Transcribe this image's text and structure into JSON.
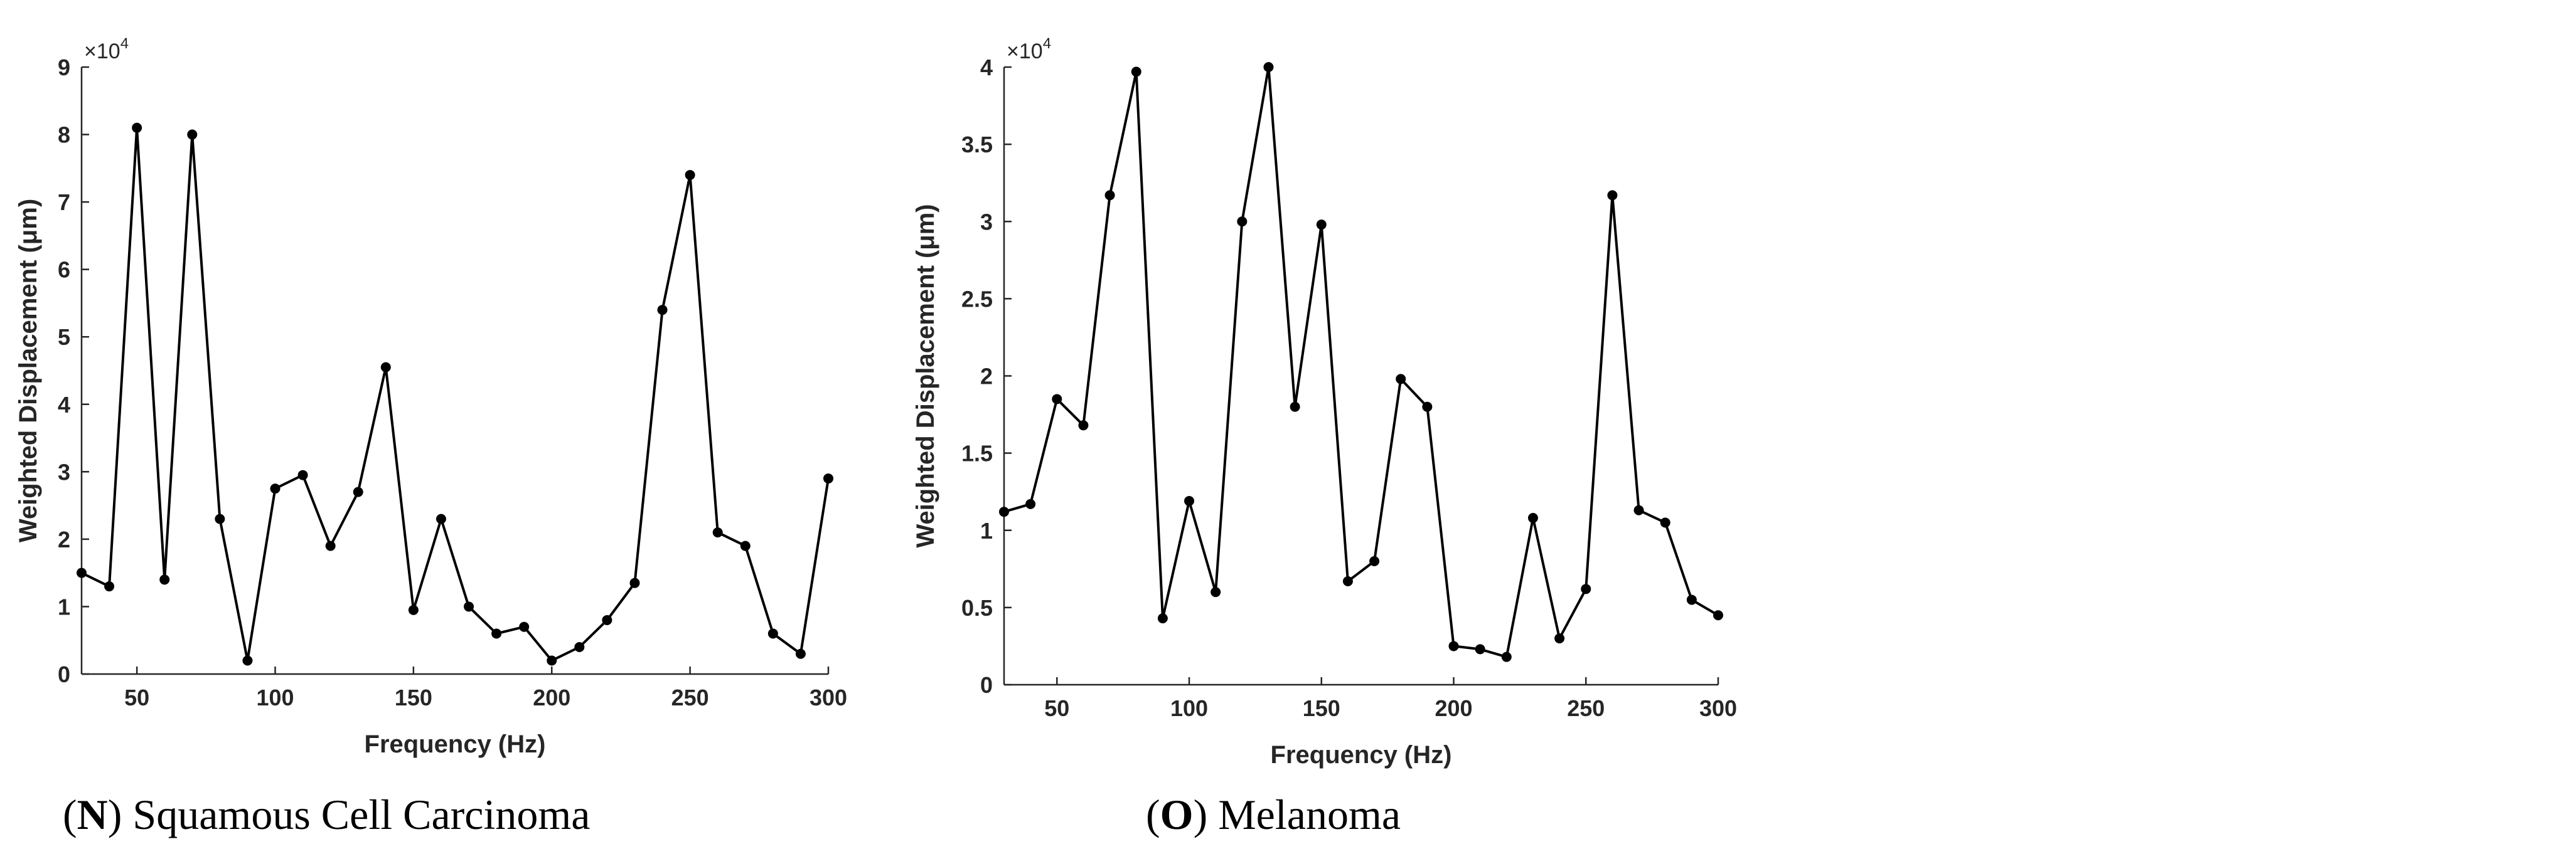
{
  "figure": {
    "panels": [
      {
        "caption": {
          "open": "(",
          "letter": "N",
          "close": ")",
          "text": " Squamous Cell Carcinoma"
        },
        "axis_color": "#262626",
        "line_color": "#000000"
      },
      {
        "caption": {
          "open": "(",
          "letter": "O",
          "close": ")",
          "text": " Melanoma"
        },
        "axis_color": "#262626",
        "line_color": "#000000"
      }
    ]
  },
  "chart_data": [
    {
      "type": "line",
      "title": "",
      "xlabel": "Frequency (Hz)",
      "ylabel": "Weighted Displacement (μm)",
      "multiplier": {
        "base": "×10",
        "exp": "4"
      },
      "xlim": [
        30,
        300
      ],
      "ylim": [
        0,
        9
      ],
      "xticks": [
        50,
        100,
        150,
        200,
        250,
        300
      ],
      "xtick_labels": [
        "50",
        "100",
        "150",
        "200",
        "250",
        "300"
      ],
      "yticks": [
        0,
        1,
        2,
        3,
        4,
        5,
        6,
        7,
        8,
        9
      ],
      "ytick_labels": [
        "0",
        "1",
        "2",
        "3",
        "4",
        "5",
        "6",
        "7",
        "8",
        "9"
      ],
      "series": [
        {
          "name": "Squamous Cell Carcinoma",
          "x": [
            30,
            40,
            50,
            60,
            70,
            80,
            90,
            100,
            110,
            120,
            130,
            140,
            150,
            160,
            170,
            180,
            190,
            200,
            210,
            220,
            230,
            240,
            250,
            260,
            270,
            280,
            290,
            300
          ],
          "y": [
            1.5,
            1.3,
            8.1,
            1.4,
            8.0,
            2.3,
            0.2,
            2.75,
            2.95,
            1.9,
            2.7,
            4.55,
            0.95,
            2.3,
            1.0,
            0.6,
            0.7,
            0.2,
            0.4,
            0.8,
            1.35,
            5.4,
            7.4,
            2.1,
            1.9,
            0.6,
            0.3,
            2.9
          ]
        }
      ]
    },
    {
      "type": "line",
      "title": "",
      "xlabel": "Frequency (Hz)",
      "ylabel": "Weighted Displacement (μm)",
      "multiplier": {
        "base": "×10",
        "exp": "4"
      },
      "xlim": [
        30,
        300
      ],
      "ylim": [
        0,
        4
      ],
      "xticks": [
        50,
        100,
        150,
        200,
        250,
        300
      ],
      "xtick_labels": [
        "50",
        "100",
        "150",
        "200",
        "250",
        "300"
      ],
      "yticks": [
        0,
        0.5,
        1,
        1.5,
        2,
        2.5,
        3,
        3.5,
        4
      ],
      "ytick_labels": [
        "0",
        "0.5",
        "1",
        "1.5",
        "2",
        "2.5",
        "3",
        "3.5",
        "4"
      ],
      "series": [
        {
          "name": "Melanoma",
          "x": [
            30,
            40,
            50,
            60,
            70,
            80,
            90,
            100,
            110,
            120,
            130,
            140,
            150,
            160,
            170,
            180,
            190,
            200,
            210,
            220,
            230,
            240,
            250,
            260,
            270,
            280,
            290,
            300
          ],
          "y": [
            1.12,
            1.17,
            1.85,
            1.68,
            3.17,
            3.97,
            0.43,
            1.19,
            0.6,
            3.0,
            4.0,
            1.8,
            2.98,
            0.67,
            0.8,
            1.98,
            1.8,
            0.25,
            0.23,
            0.18,
            1.08,
            0.3,
            0.62,
            3.17,
            1.13,
            1.05,
            0.55,
            0.45
          ]
        }
      ]
    }
  ]
}
